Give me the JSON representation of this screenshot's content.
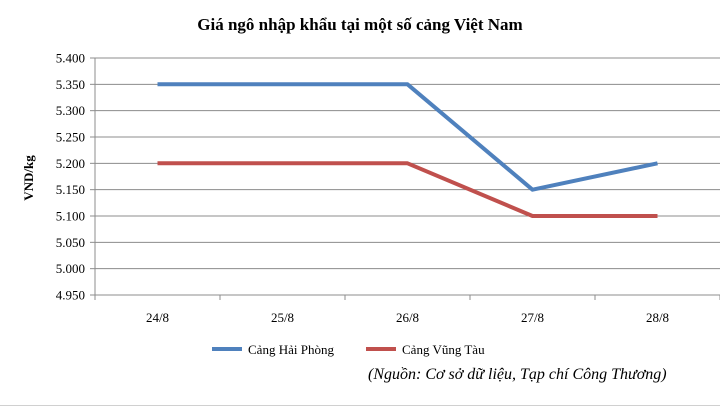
{
  "chart_data": {
    "type": "line",
    "title": "Giá ngô nhập khẩu tại một số cảng Việt Nam",
    "xlabel": "",
    "ylabel": "VND/kg",
    "categories": [
      "24/8",
      "25/8",
      "26/8",
      "27/8",
      "28/8"
    ],
    "series": [
      {
        "name": "Cảng Hải Phòng",
        "color": "#4f81bd",
        "values": [
          5350,
          5350,
          5350,
          5150,
          5200
        ]
      },
      {
        "name": "Cảng Vũng Tàu",
        "color": "#c0504d",
        "values": [
          5200,
          5200,
          5200,
          5100,
          5100
        ]
      }
    ],
    "ylim": [
      4950,
      5400
    ],
    "ytick_step": 50,
    "yticks": [
      "5.400",
      "5.350",
      "5.300",
      "5.250",
      "5.200",
      "5.150",
      "5.100",
      "5.050",
      "5.000",
      "4.950"
    ],
    "grid": true,
    "legend": "bottom"
  },
  "source_note": "(Nguồn: Cơ sở dữ liệu, Tạp chí Công Thương)"
}
